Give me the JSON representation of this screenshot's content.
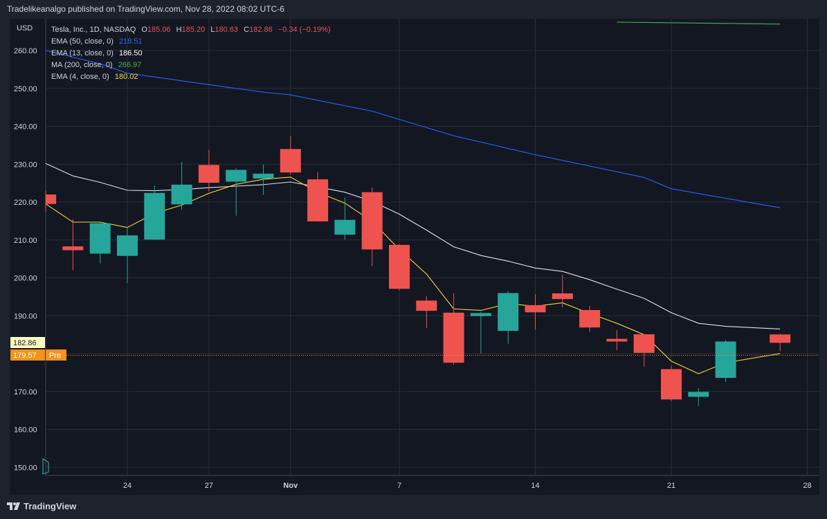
{
  "header": {
    "text": "Tradelikeanalgo published on TradingView.com, Nov 28, 2022 08:02 UTC-6"
  },
  "footer": {
    "brand": "TradingView"
  },
  "legend": {
    "main": {
      "title": "Tesla, Inc., 1D, NASDAQ",
      "o_label": "O",
      "o": "185.06",
      "h_label": "H",
      "h": "185.20",
      "l_label": "L",
      "l": "180.63",
      "c_label": "C",
      "c": "182.86",
      "change": "−0.34 (−0.19%)"
    },
    "ema50": {
      "label": "EMA (50, close, 0)",
      "value": "218.51"
    },
    "ema13": {
      "label": "EMA (13, close, 0)",
      "value": "186.50"
    },
    "ma200": {
      "label": "MA (200, close, 0)",
      "value": "266.97"
    },
    "ema4": {
      "label": "EMA (4, close, 0)",
      "value": "180.02"
    }
  },
  "price_axis": {
    "currency": "USD",
    "last_price": "182.86",
    "pre_price": "179.57",
    "pre_label": "Pre"
  },
  "colors": {
    "background": "#131722",
    "frame": "#1e222d",
    "grid": "#2a2e39",
    "up": "#26a69a",
    "down": "#ef5350",
    "ema50": "#2962ff",
    "ema13": "#e0e3eb",
    "ma200": "#4caf50",
    "ema4": "#fdd835",
    "pre_tag": "#f7931a",
    "last_tag": "#fff9c4"
  },
  "chart_data": {
    "type": "candlestick",
    "symbol": "Tesla, Inc.",
    "interval": "1D",
    "exchange": "NASDAQ",
    "y_ticks": [
      150,
      160,
      170,
      180,
      190,
      200,
      210,
      220,
      230,
      240,
      250,
      260
    ],
    "y_tick_labels": [
      "150.00",
      "160.00",
      "170.00",
      "180.00",
      "190.00",
      "200.00",
      "210.00",
      "220.00",
      "230.00",
      "240.00",
      "250.00",
      "260.00"
    ],
    "ylim": [
      148,
      265
    ],
    "x_ticks": [
      {
        "label": "24",
        "date": "2022-10-24"
      },
      {
        "label": "27",
        "date": "2022-10-27"
      },
      {
        "label": "Nov",
        "date": "2022-11-01"
      },
      {
        "label": "7",
        "date": "2022-11-07"
      },
      {
        "label": "14",
        "date": "2022-11-14"
      },
      {
        "label": "21",
        "date": "2022-11-21"
      },
      {
        "label": "28",
        "date": "2022-11-28"
      }
    ],
    "candles": [
      {
        "date": "2022-10-19",
        "open": 222.0,
        "high": 223.0,
        "low": 217.5,
        "close": 219.5
      },
      {
        "date": "2022-10-20",
        "open": 208.3,
        "high": 215.5,
        "low": 202.0,
        "close": 207.3
      },
      {
        "date": "2022-10-21",
        "open": 206.4,
        "high": 214.7,
        "low": 203.8,
        "close": 214.4
      },
      {
        "date": "2022-10-24",
        "open": 205.8,
        "high": 213.5,
        "low": 198.6,
        "close": 211.2
      },
      {
        "date": "2022-10-25",
        "open": 210.1,
        "high": 224.4,
        "low": 210.0,
        "close": 222.4
      },
      {
        "date": "2022-10-26",
        "open": 219.4,
        "high": 230.6,
        "low": 218.0,
        "close": 224.6
      },
      {
        "date": "2022-10-27",
        "open": 229.8,
        "high": 233.8,
        "low": 222.8,
        "close": 225.1
      },
      {
        "date": "2022-10-28",
        "open": 225.4,
        "high": 228.9,
        "low": 216.4,
        "close": 228.5
      },
      {
        "date": "2022-10-31",
        "open": 226.2,
        "high": 229.9,
        "low": 221.9,
        "close": 227.5
      },
      {
        "date": "2022-11-01",
        "open": 234.0,
        "high": 237.4,
        "low": 227.3,
        "close": 227.8
      },
      {
        "date": "2022-11-02",
        "open": 226.0,
        "high": 227.9,
        "low": 214.8,
        "close": 214.9
      },
      {
        "date": "2022-11-03",
        "open": 211.4,
        "high": 221.2,
        "low": 210.1,
        "close": 215.3
      },
      {
        "date": "2022-11-04",
        "open": 222.6,
        "high": 223.8,
        "low": 203.1,
        "close": 207.5
      },
      {
        "date": "2022-11-07",
        "open": 208.7,
        "high": 208.9,
        "low": 196.7,
        "close": 197.1
      },
      {
        "date": "2022-11-08",
        "open": 194.0,
        "high": 195.2,
        "low": 186.8,
        "close": 191.3
      },
      {
        "date": "2022-11-09",
        "open": 190.8,
        "high": 195.9,
        "low": 177.1,
        "close": 177.6
      },
      {
        "date": "2022-11-10",
        "open": 189.9,
        "high": 191.0,
        "low": 180.0,
        "close": 190.7
      },
      {
        "date": "2022-11-11",
        "open": 186.0,
        "high": 196.5,
        "low": 182.6,
        "close": 195.97
      },
      {
        "date": "2022-11-14",
        "open": 192.8,
        "high": 195.7,
        "low": 186.3,
        "close": 190.9
      },
      {
        "date": "2022-11-15",
        "open": 195.9,
        "high": 200.8,
        "low": 192.1,
        "close": 194.4
      },
      {
        "date": "2022-11-16",
        "open": 191.5,
        "high": 192.6,
        "low": 185.7,
        "close": 186.9
      },
      {
        "date": "2022-11-17",
        "open": 183.9,
        "high": 186.2,
        "low": 180.9,
        "close": 183.2
      },
      {
        "date": "2022-11-18",
        "open": 185.1,
        "high": 185.2,
        "low": 176.6,
        "close": 180.2
      },
      {
        "date": "2022-11-21",
        "open": 175.9,
        "high": 176.8,
        "low": 167.5,
        "close": 167.9
      },
      {
        "date": "2022-11-22",
        "open": 168.6,
        "high": 170.9,
        "low": 166.2,
        "close": 169.9
      },
      {
        "date": "2022-11-23",
        "open": 173.6,
        "high": 183.6,
        "low": 172.5,
        "close": 183.2
      },
      {
        "date": "2022-11-25",
        "open": 185.06,
        "high": 185.2,
        "low": 180.63,
        "close": 182.86
      }
    ],
    "series": [
      {
        "name": "EMA (50, close, 0)",
        "dates": [
          "2022-10-19",
          "2022-10-21",
          "2022-10-24",
          "2022-10-27",
          "2022-10-31",
          "2022-11-01",
          "2022-11-04",
          "2022-11-09",
          "2022-11-14",
          "2022-11-18",
          "2022-11-21",
          "2022-11-25"
        ],
        "values": [
          260.0,
          256.5,
          254.0,
          251.0,
          249.0,
          248.3,
          244.0,
          237.5,
          232.5,
          226.5,
          223.5,
          218.51
        ]
      },
      {
        "name": "EMA (13, close, 0)",
        "dates": [
          "2022-10-19",
          "2022-10-20",
          "2022-10-21",
          "2022-10-24",
          "2022-10-25",
          "2022-10-26",
          "2022-10-27",
          "2022-10-28",
          "2022-10-31",
          "2022-11-01",
          "2022-11-02",
          "2022-11-03",
          "2022-11-04",
          "2022-11-07",
          "2022-11-08",
          "2022-11-09",
          "2022-11-10",
          "2022-11-11",
          "2022-11-14",
          "2022-11-15",
          "2022-11-16",
          "2022-11-17",
          "2022-11-18",
          "2022-11-21",
          "2022-11-22",
          "2022-11-23",
          "2022-11-25"
        ],
        "values": [
          230.2,
          226.9,
          225.2,
          223.1,
          223.0,
          223.3,
          223.8,
          224.2,
          224.6,
          225.3,
          224.0,
          222.6,
          220.2,
          216.8,
          212.6,
          208.2,
          205.9,
          204.4,
          202.6,
          201.7,
          199.5,
          197.0,
          194.6,
          190.8,
          188.0,
          187.2,
          186.5
        ]
      },
      {
        "name": "MA (200, close, 0)",
        "dates": [
          "2022-11-17",
          "2022-11-25"
        ],
        "values": [
          267.5,
          266.97
        ]
      },
      {
        "name": "EMA (4, close, 0)",
        "dates": [
          "2022-10-19",
          "2022-10-20",
          "2022-10-21",
          "2022-10-24",
          "2022-10-25",
          "2022-10-26",
          "2022-10-27",
          "2022-10-28",
          "2022-10-31",
          "2022-11-01",
          "2022-11-02",
          "2022-11-03",
          "2022-11-04",
          "2022-11-07",
          "2022-11-08",
          "2022-11-09",
          "2022-11-10",
          "2022-11-11",
          "2022-11-14",
          "2022-11-15",
          "2022-11-16",
          "2022-11-17",
          "2022-11-18",
          "2022-11-21",
          "2022-11-22",
          "2022-11-23",
          "2022-11-25"
        ],
        "values": [
          219.5,
          214.7,
          214.7,
          213.3,
          217.0,
          219.2,
          222.3,
          224.7,
          226.0,
          226.6,
          222.6,
          219.7,
          214.9,
          207.5,
          201.0,
          191.8,
          191.4,
          193.2,
          192.5,
          193.4,
          190.6,
          188.0,
          185.0,
          178.0,
          174.7,
          177.6,
          180.02
        ]
      }
    ]
  }
}
